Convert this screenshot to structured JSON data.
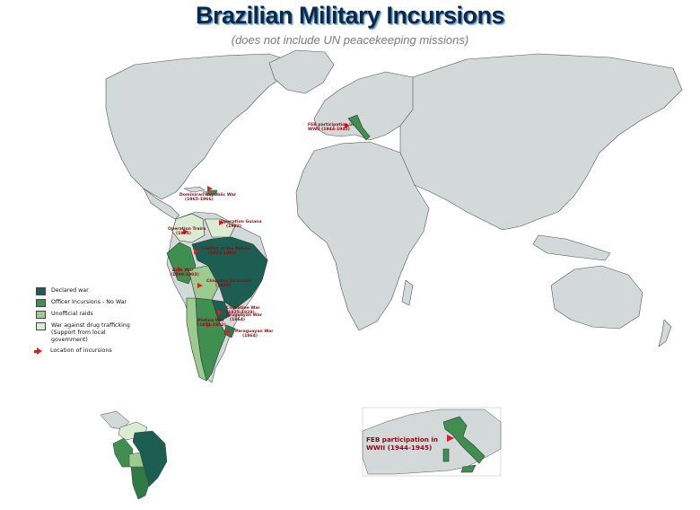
{
  "title": "Brazilian Military Incursions",
  "subtitle": "(does not include UN peacekeeping missions)",
  "colors": {
    "land": "#d3d8d9",
    "border": "#555555",
    "ocean": "#ffffff",
    "declared_war": "#1c5f52",
    "officer_incursions": "#3f8f50",
    "unofficial_raids": "#9ccb8f",
    "drug_war": "#dcecd2",
    "incursion_arrow": "#d82020"
  },
  "legend": [
    {
      "label": "Declared war",
      "category": "declared_war"
    },
    {
      "label": "Officer Incursions - No War",
      "category": "officer_incursions"
    },
    {
      "label": "Unofficial raids",
      "category": "unofficial_raids"
    },
    {
      "label": "War against drug trafficking (Support from local government)",
      "category": "drug_war"
    },
    {
      "label": "Location of incursions",
      "category": "arrow"
    }
  ],
  "incursions": [
    {
      "label": "FEB participation in WWII (1944-1945)",
      "lines": [
        "FEB participation in",
        "WWII (1944-1945)"
      ]
    },
    {
      "label": "Dominican Republic War (1965-1966)",
      "lines": [
        "Dominican Republic War",
        "(1965-1966)"
      ]
    },
    {
      "label": "Operation Traira (1991)",
      "lines": [
        "Operation Traira",
        "(1991)"
      ]
    },
    {
      "label": "Operation Guiana (1982)",
      "lines": [
        "Operation Guiana",
        "(1982)"
      ]
    },
    {
      "label": "Conflict of the Rebels (1901-1903)",
      "lines": [
        "Conflict of the Rebels",
        "(1901-1903)"
      ]
    },
    {
      "label": "Acre War (1899-1903)",
      "lines": [
        "Acre War",
        "(1899-1903)"
      ]
    },
    {
      "label": "Chiquitos Incursion (1825)",
      "lines": [
        "Chiquitos Incursion",
        "(1825)"
      ]
    },
    {
      "label": "Cisplatine War (1825-1828)",
      "lines": [
        "Cisplatine War",
        "(1825-1828)"
      ]
    },
    {
      "label": "Platine War (1851-1852)",
      "lines": [
        "Platine War",
        "(1851-1852)"
      ]
    },
    {
      "label": "Uruguayan War (1864)",
      "lines": [
        "Uruguayan War",
        "(1864)"
      ]
    },
    {
      "label": "Paraguayan War (1864)",
      "lines": [
        "Paraguayan War",
        "(1864)"
      ]
    }
  ],
  "inset_label": [
    "FEB participation in",
    "WWII (1944-1945)"
  ]
}
